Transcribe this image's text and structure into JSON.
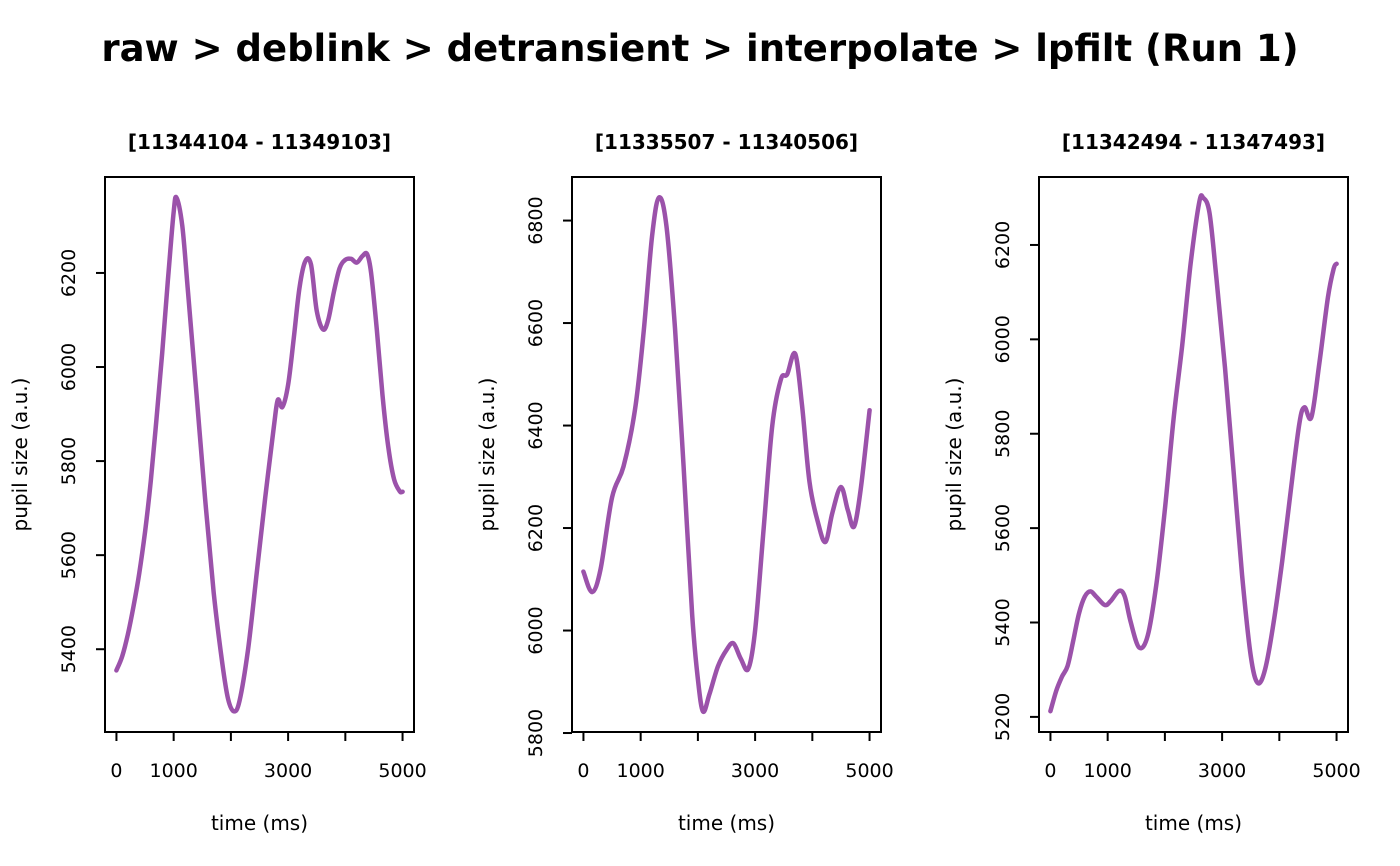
{
  "page": {
    "title": "raw > deblink > detransient > interpolate > lpfilt (Run 1)"
  },
  "style": {
    "line_color": "#9B52AA",
    "axis_color": "#000000",
    "background": "#FFFFFF"
  },
  "chart_data": [
    {
      "type": "line",
      "title": "[11344104 - 11349103]",
      "xlabel": "time (ms)",
      "ylabel": "pupil size (a.u.)",
      "xlim": [
        -200,
        5200
      ],
      "ylim": [
        5224,
        6404
      ],
      "xticks": [
        0,
        1000,
        2000,
        3000,
        4000,
        5000
      ],
      "xtick_labels": [
        "0",
        "1000",
        "",
        "3000",
        "",
        "5000"
      ],
      "yticks": [
        5400,
        5600,
        5800,
        6000,
        6200
      ],
      "x": [
        0,
        100,
        200,
        300,
        400,
        500,
        600,
        700,
        800,
        900,
        1000,
        1050,
        1150,
        1250,
        1400,
        1550,
        1700,
        1850,
        1950,
        2050,
        2150,
        2300,
        2450,
        2600,
        2750,
        2820,
        2900,
        3000,
        3100,
        3200,
        3300,
        3400,
        3500,
        3610,
        3700,
        3800,
        3900,
        4000,
        4100,
        4200,
        4300,
        4380,
        4450,
        4550,
        4650,
        4750,
        4850,
        4950,
        5000
      ],
      "y": [
        5355,
        5385,
        5432,
        5492,
        5562,
        5650,
        5758,
        5890,
        6030,
        6185,
        6330,
        6360,
        6300,
        6160,
        5940,
        5720,
        5520,
        5370,
        5295,
        5268,
        5290,
        5400,
        5560,
        5722,
        5872,
        5930,
        5915,
        5962,
        6062,
        6170,
        6225,
        6218,
        6120,
        6080,
        6100,
        6160,
        6210,
        6228,
        6230,
        6222,
        6236,
        6240,
        6200,
        6080,
        5940,
        5830,
        5762,
        5736,
        5735
      ]
    },
    {
      "type": "line",
      "title": "[11335507 - 11340506]",
      "xlabel": "time (ms)",
      "ylabel": "pupil size (a.u.)",
      "xlim": [
        -200,
        5200
      ],
      "ylim": [
        5802,
        6885
      ],
      "xticks": [
        0,
        1000,
        2000,
        3000,
        4000,
        5000
      ],
      "xtick_labels": [
        "0",
        "1000",
        "",
        "3000",
        "",
        "5000"
      ],
      "yticks": [
        5800,
        6000,
        6200,
        6400,
        6600,
        6800
      ],
      "x": [
        0,
        150,
        300,
        500,
        700,
        900,
        1050,
        1200,
        1320,
        1450,
        1600,
        1750,
        1900,
        2000,
        2090,
        2200,
        2350,
        2500,
        2620,
        2750,
        2880,
        3000,
        3150,
        3300,
        3450,
        3560,
        3700,
        3820,
        3950,
        4100,
        4230,
        4350,
        4500,
        4620,
        4730,
        4850,
        5000
      ],
      "y": [
        6115,
        6075,
        6120,
        6260,
        6320,
        6430,
        6580,
        6770,
        6845,
        6790,
        6590,
        6320,
        6030,
        5905,
        5842,
        5875,
        5930,
        5962,
        5975,
        5945,
        5925,
        6000,
        6200,
        6400,
        6490,
        6500,
        6540,
        6440,
        6290,
        6210,
        6173,
        6230,
        6280,
        6235,
        6203,
        6280,
        6430
      ]
    },
    {
      "type": "line",
      "title": "[11342494 - 11347493]",
      "xlabel": "time (ms)",
      "ylabel": "pupil size (a.u.)",
      "xlim": [
        -200,
        5200
      ],
      "ylim": [
        5168,
        6344
      ],
      "xticks": [
        0,
        1000,
        2000,
        3000,
        4000,
        5000
      ],
      "xtick_labels": [
        "0",
        "1000",
        "",
        "3000",
        "",
        "5000"
      ],
      "yticks": [
        5200,
        5400,
        5600,
        5800,
        6000,
        6200
      ],
      "x": [
        0,
        100,
        200,
        300,
        400,
        500,
        600,
        700,
        800,
        950,
        1050,
        1200,
        1300,
        1400,
        1550,
        1700,
        1850,
        2000,
        2150,
        2300,
        2450,
        2600,
        2670,
        2780,
        2900,
        3050,
        3200,
        3350,
        3500,
        3620,
        3750,
        3900,
        4050,
        4200,
        4350,
        4440,
        4560,
        4700,
        4850,
        4950,
        5000
      ],
      "y": [
        5212,
        5255,
        5285,
        5308,
        5362,
        5420,
        5455,
        5466,
        5455,
        5437,
        5445,
        5467,
        5455,
        5402,
        5347,
        5372,
        5480,
        5640,
        5830,
        5985,
        6160,
        6290,
        6300,
        6268,
        6130,
        5940,
        5720,
        5500,
        5330,
        5272,
        5300,
        5400,
        5530,
        5680,
        5822,
        5856,
        5835,
        5950,
        6090,
        6150,
        6160
      ]
    }
  ]
}
